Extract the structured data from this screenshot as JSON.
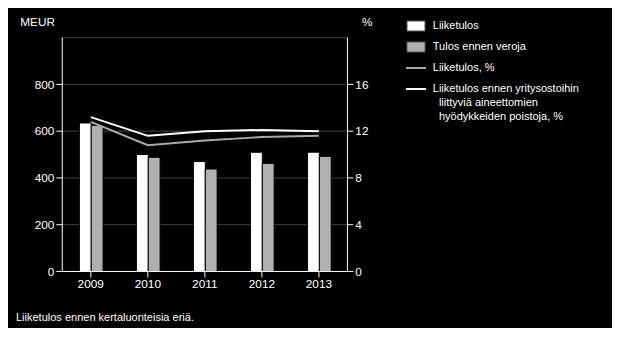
{
  "chart_data": {
    "type": "bar",
    "categories": [
      "2009",
      "2010",
      "2011",
      "2012",
      "2013"
    ],
    "series": [
      {
        "name": "Liiketulos",
        "color": "#ffffff",
        "values": [
          635,
          500,
          470,
          510,
          510
        ]
      },
      {
        "name": "Tulos ennen veroja",
        "color": "#b0b0b0",
        "values": [
          625,
          488,
          438,
          462,
          492
        ]
      },
      {
        "name": "Liiketulos, %",
        "type": "line",
        "axis": "y2",
        "color": "#aaaaaa",
        "values": [
          12.8,
          10.8,
          11.2,
          11.5,
          11.6
        ]
      },
      {
        "name": "Liiketulos ennen yritysostoihin\n  liittyviä aineettomien\n  hyödykkeiden poistoja, %",
        "type": "line",
        "axis": "y2",
        "color": "#ffffff",
        "values": [
          13.2,
          11.6,
          12.0,
          12.1,
          12.0
        ]
      }
    ],
    "ylabel": "MEUR",
    "y2label": "%",
    "ylim": [
      0,
      1000
    ],
    "yticks": [
      0,
      200,
      400,
      600,
      800
    ],
    "y2lim": [
      0,
      20
    ],
    "y2ticks": [
      0,
      4,
      8,
      12,
      16
    ],
    "grid": true,
    "legend": "right",
    "footnote": "Liiketulos ennen kertaluonteisia eriä."
  }
}
